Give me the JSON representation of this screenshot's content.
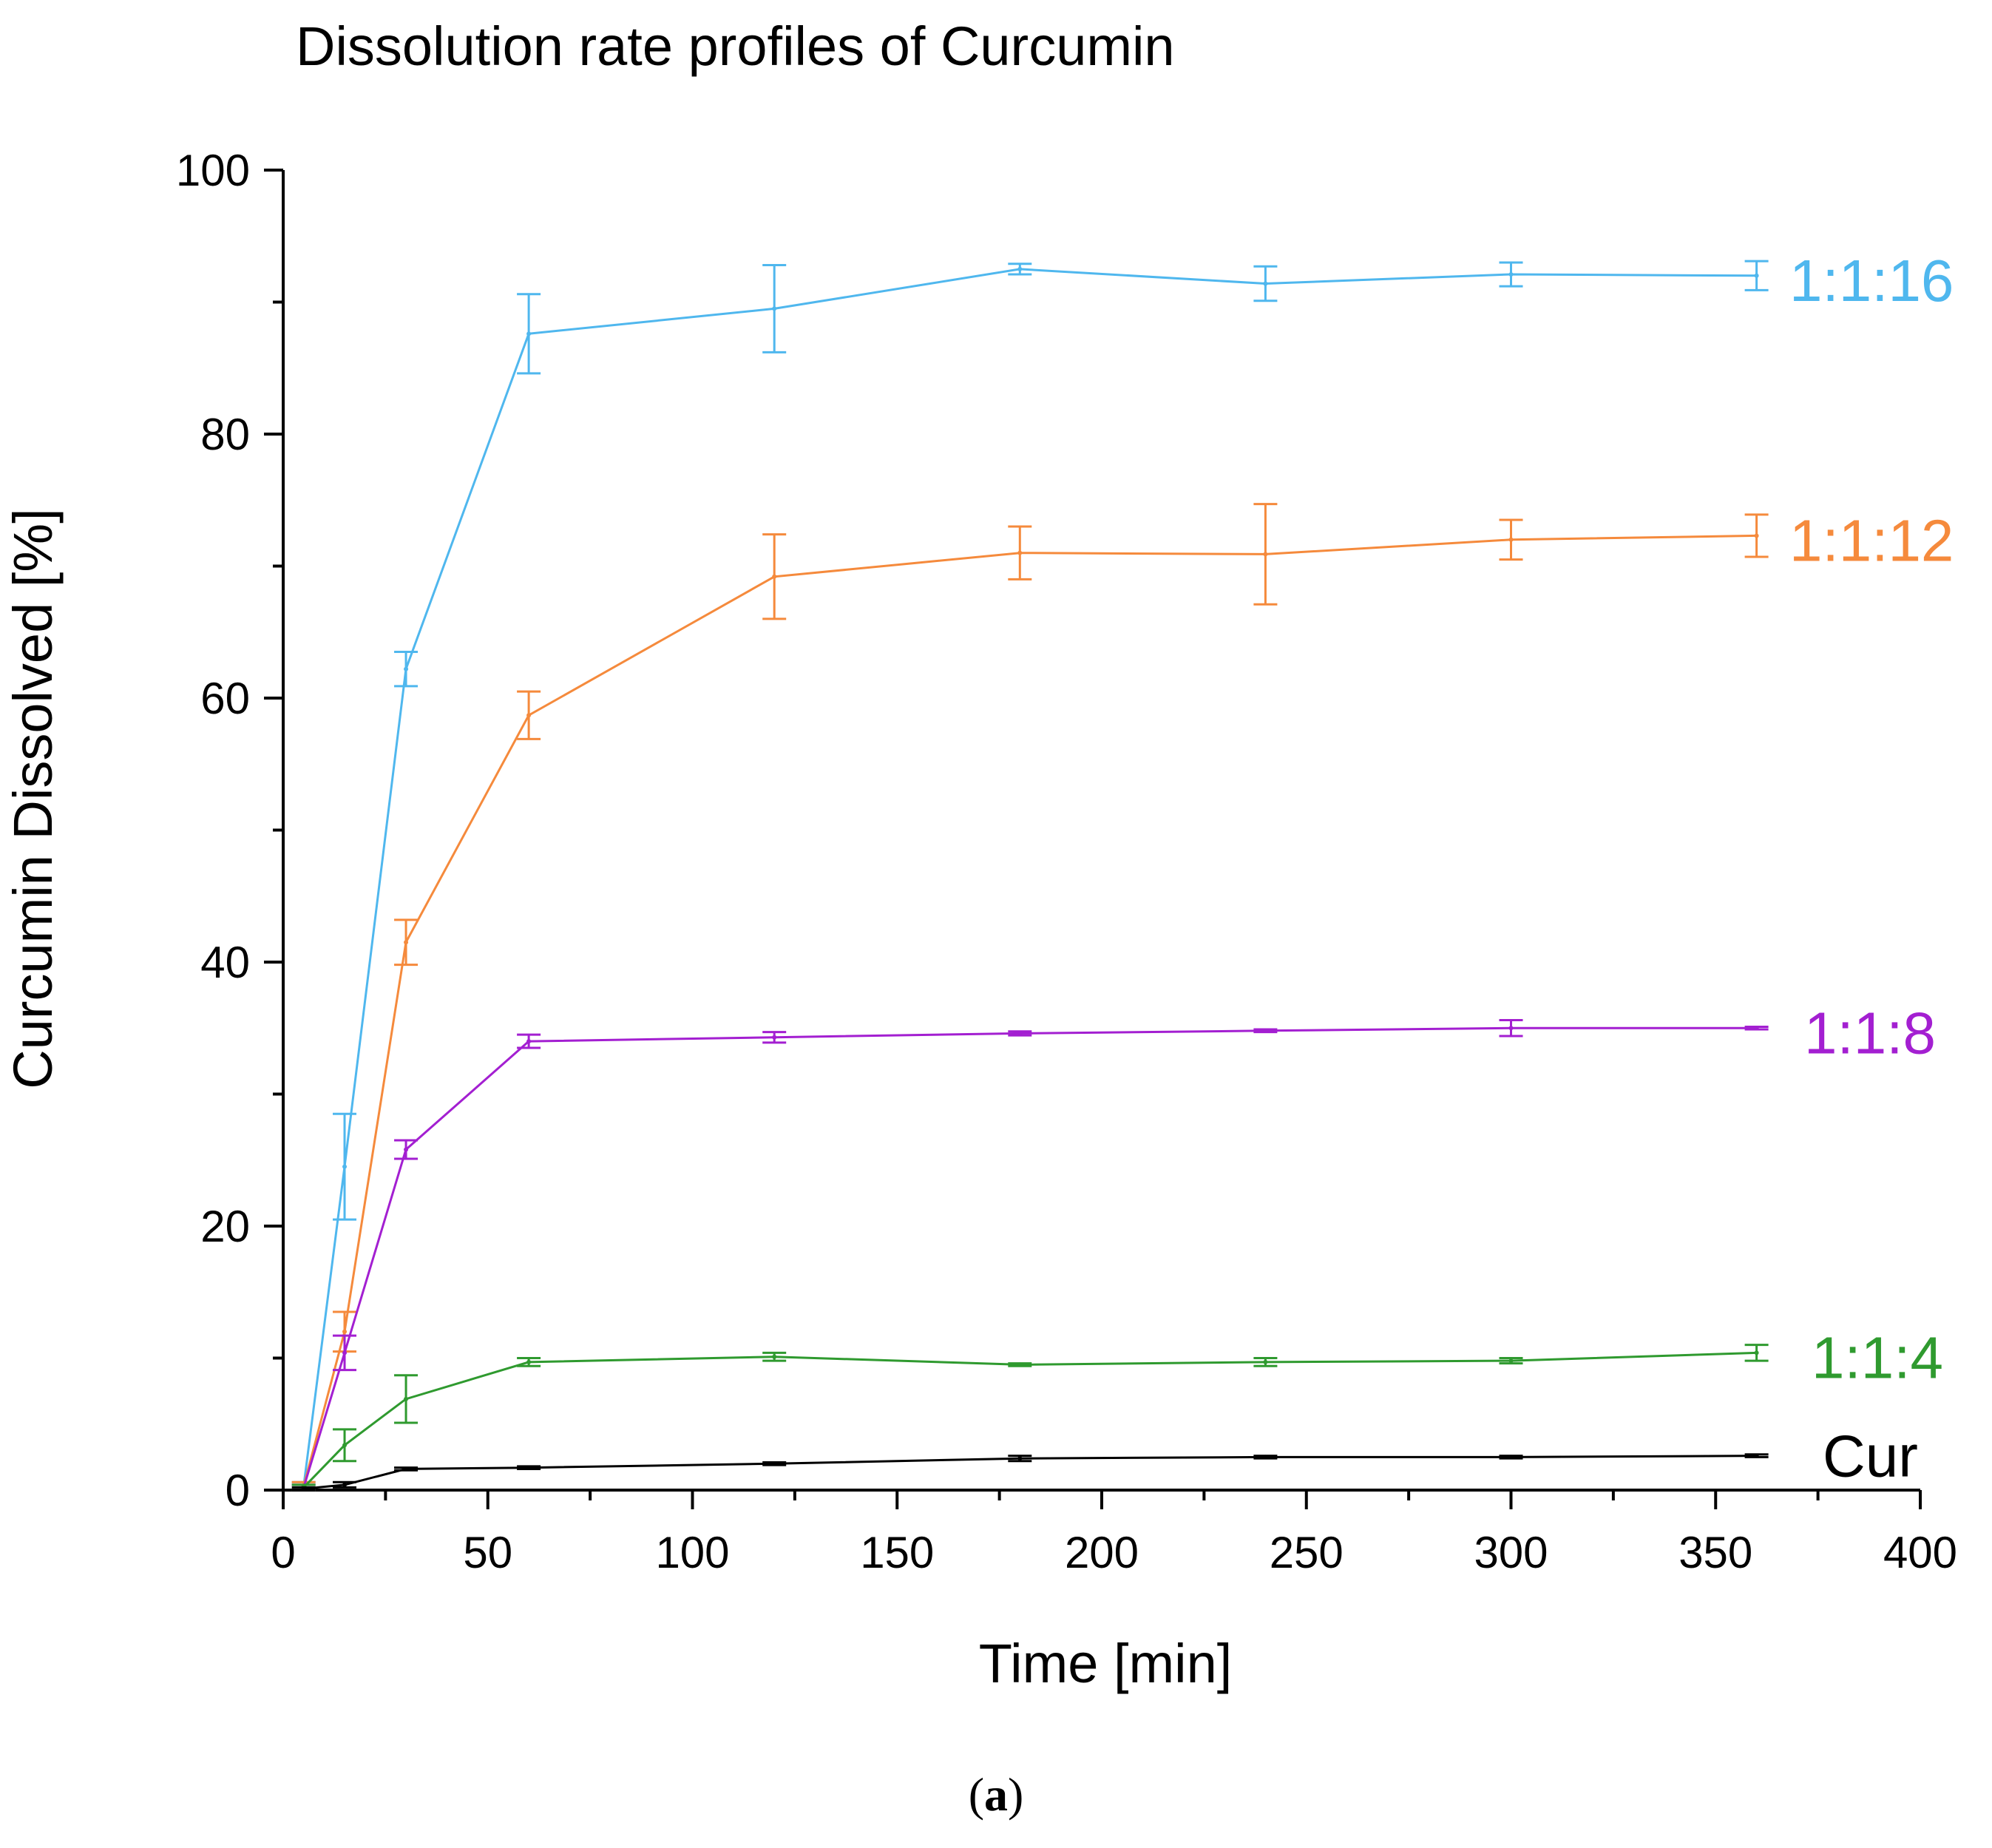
{
  "chart_data": {
    "type": "line",
    "title": "Dissolution rate profiles of Curcumin",
    "xlabel": "Time [min]",
    "ylabel": "Curcumin Dissolved [%]",
    "xlim": [
      0,
      400
    ],
    "ylim": [
      0,
      100
    ],
    "xticks": [
      0,
      50,
      100,
      150,
      200,
      250,
      300,
      350,
      400
    ],
    "yticks": [
      0,
      20,
      40,
      60,
      80,
      100
    ],
    "grid": false,
    "error_bars": true,
    "x": [
      5,
      15,
      30,
      60,
      120,
      180,
      240,
      300,
      360
    ],
    "series": [
      {
        "name": "1:1:16",
        "color": "#4fb7ee",
        "values": [
          0.3,
          24.5,
          62.2,
          87.6,
          89.5,
          92.5,
          91.4,
          92.1,
          92.0
        ],
        "errors": [
          0.3,
          4.0,
          1.3,
          3.0,
          3.3,
          0.4,
          1.3,
          0.9,
          1.1
        ]
      },
      {
        "name": "1:1:12",
        "color": "#f58a3c",
        "values": [
          0.3,
          12.0,
          41.5,
          58.7,
          69.2,
          71.0,
          70.9,
          72.0,
          72.3
        ],
        "errors": [
          0.3,
          1.5,
          1.7,
          1.8,
          3.2,
          2.0,
          3.8,
          1.5,
          1.6
        ]
      },
      {
        "name": "1:1:8",
        "color": "#a31fd1",
        "values": [
          0.2,
          10.4,
          25.8,
          34.0,
          34.3,
          34.6,
          34.8,
          35.0,
          35.0
        ],
        "errors": [
          0.2,
          1.3,
          0.7,
          0.5,
          0.4,
          0.15,
          0.1,
          0.6,
          0.1
        ]
      },
      {
        "name": "1:1:4",
        "color": "#2f9a2f",
        "values": [
          0.2,
          3.4,
          6.9,
          9.7,
          10.1,
          9.5,
          9.7,
          9.8,
          10.4
        ],
        "errors": [
          0.2,
          1.2,
          1.8,
          0.3,
          0.3,
          0.1,
          0.3,
          0.2,
          0.6
        ]
      },
      {
        "name": "Cur",
        "color": "#000000",
        "values": [
          0.1,
          0.4,
          1.6,
          1.7,
          2.0,
          2.4,
          2.5,
          2.5,
          2.6
        ],
        "errors": [
          0.1,
          0.2,
          0.1,
          0.1,
          0.1,
          0.2,
          0.1,
          0.1,
          0.1
        ]
      }
    ]
  },
  "caption": {
    "label": "a"
  }
}
